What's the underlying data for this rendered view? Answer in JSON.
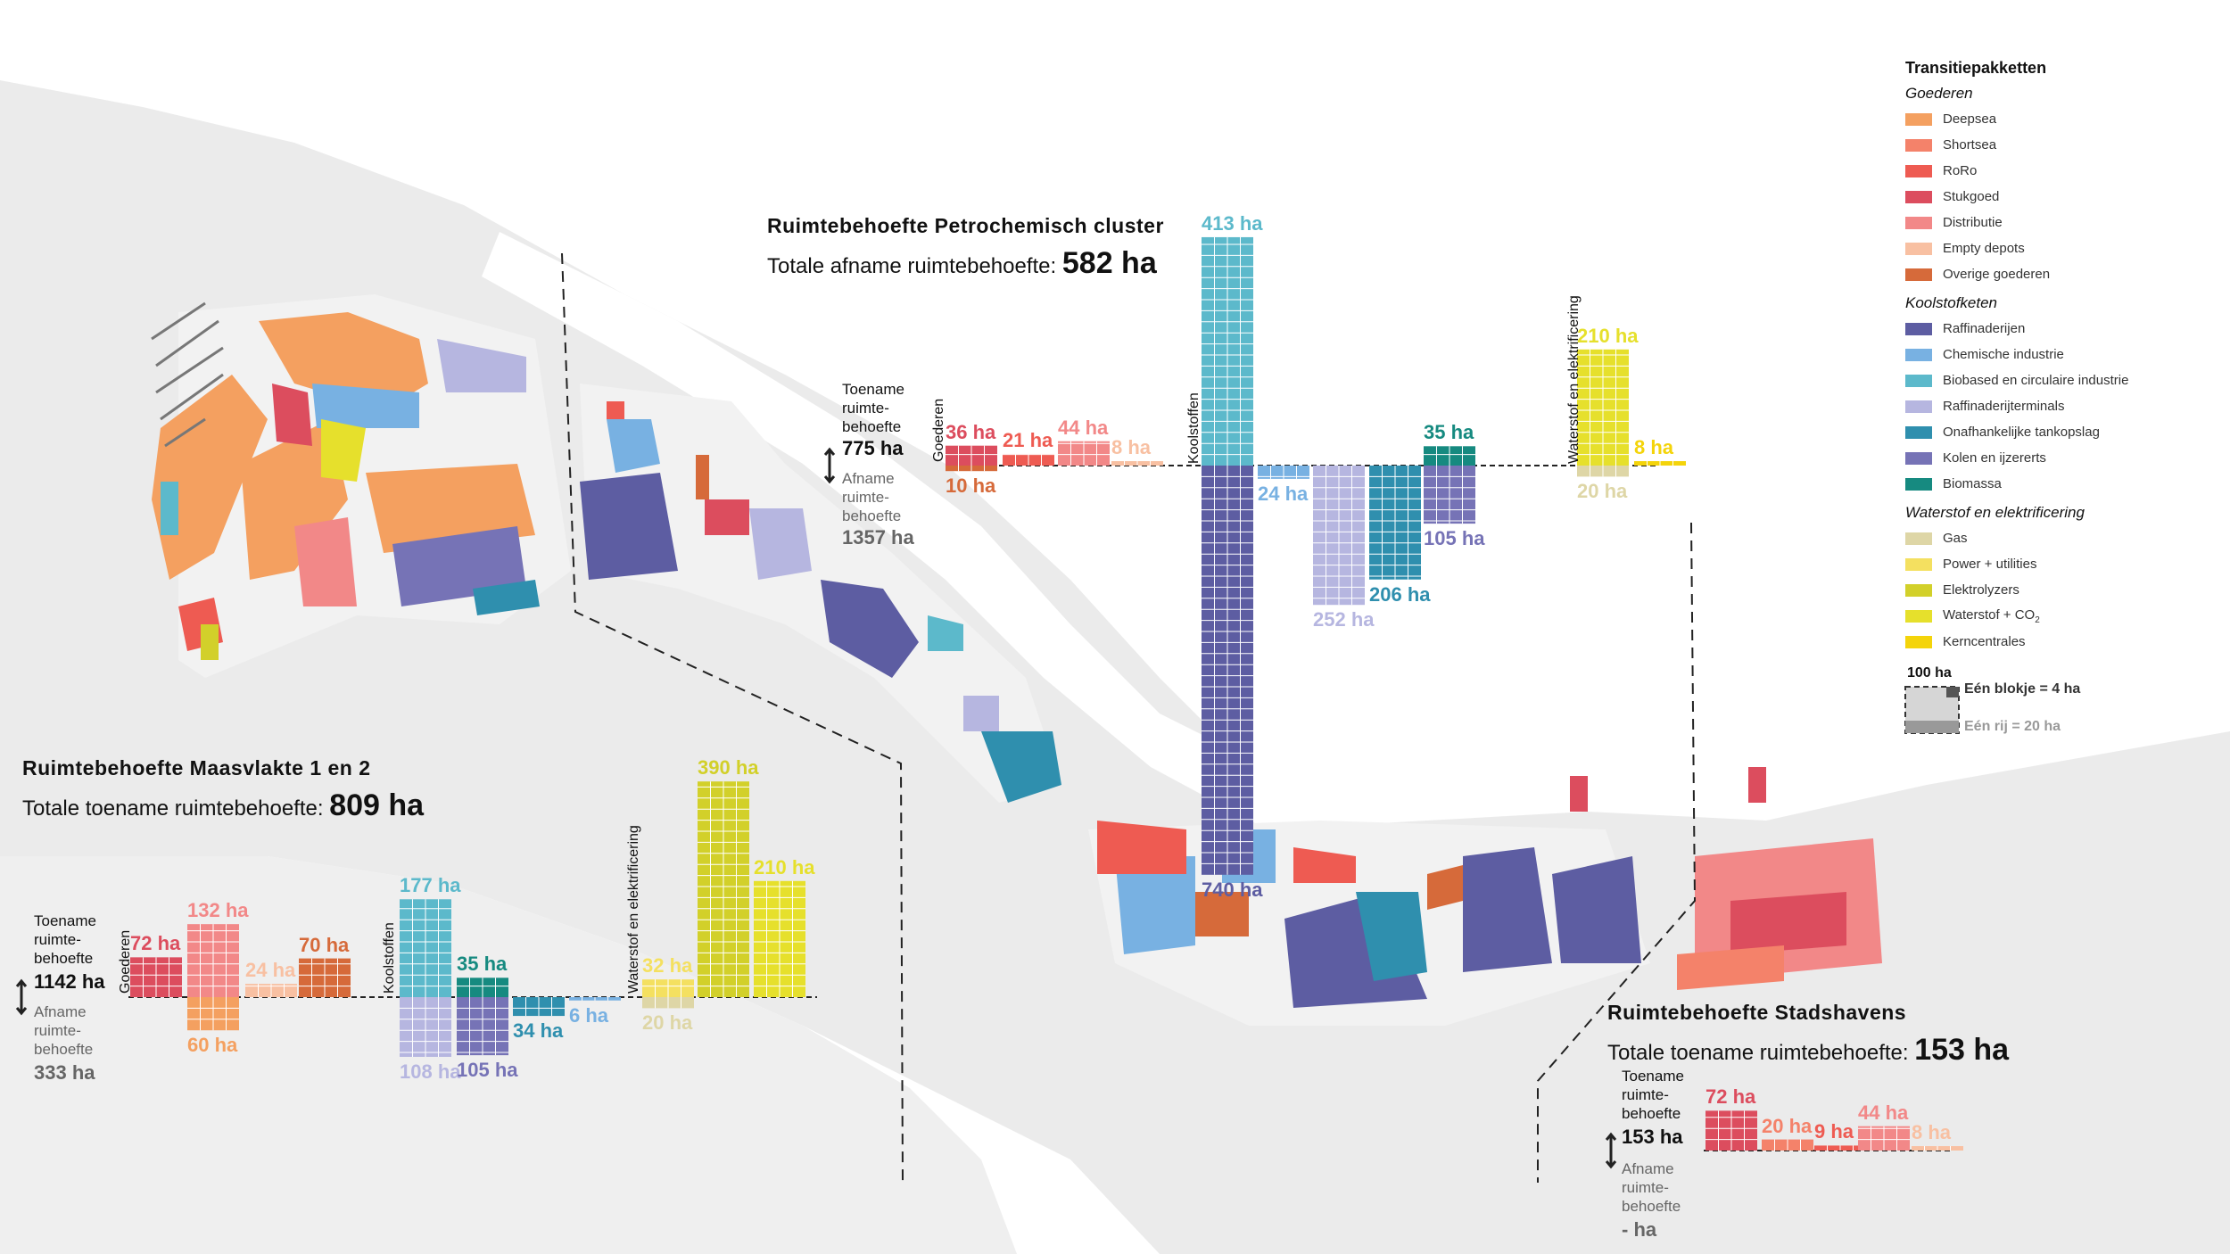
{
  "colors": {
    "Deepsea": "#f4a060",
    "Shortsea": "#f4826a",
    "RoRo": "#ee5b52",
    "Stukgoed": "#dc4d5e",
    "Distributie": "#f28888",
    "Empty depots": "#f8c0a2",
    "Overige goederen": "#d66a3a",
    "Raffinaderijen": "#5d5da2",
    "Chemische industrie": "#78b1e2",
    "Biobased": "#5cb9cb",
    "Raffinaderijterminals": "#b6b6e0",
    "Tankopslag": "#2f8fae",
    "Kolen": "#7673b6",
    "Biomassa": "#168a80",
    "Gas": "#ded6a6",
    "Power": "#f4e060",
    "Elektrolyzers": "#d2d02a",
    "Waterstof": "#e6e02c",
    "Kerncentrales": "#f4d40a"
  },
  "legend": {
    "title": "Transitiepakketten",
    "groups": [
      {
        "name": "Goederen",
        "items": [
          {
            "label": "Deepsea",
            "color": "#f4a060"
          },
          {
            "label": "Shortsea",
            "color": "#f4826a"
          },
          {
            "label": "RoRo",
            "color": "#ee5b52"
          },
          {
            "label": "Stukgoed",
            "color": "#dc4d5e"
          },
          {
            "label": "Distributie",
            "color": "#f28888"
          },
          {
            "label": "Empty depots",
            "color": "#f8c0a2"
          },
          {
            "label": "Overige goederen",
            "color": "#d66a3a"
          }
        ]
      },
      {
        "name": "Koolstofketen",
        "items": [
          {
            "label": "Raffinaderijen",
            "color": "#5d5da2"
          },
          {
            "label": "Chemische industrie",
            "color": "#78b1e2"
          },
          {
            "label": "Biobased en circulaire industrie",
            "color": "#5cb9cb"
          },
          {
            "label": "Raffinaderijterminals",
            "color": "#b6b6e0"
          },
          {
            "label": "Onafhankelijke tankopslag",
            "color": "#2f8fae"
          },
          {
            "label": "Kolen en ijzererts",
            "color": "#7673b6"
          },
          {
            "label": "Biomassa",
            "color": "#168a80"
          }
        ]
      },
      {
        "name": "Waterstof en elektrificering",
        "items": [
          {
            "label": "Gas",
            "color": "#ded6a6"
          },
          {
            "label": "Power + utilities",
            "color": "#f4e060"
          },
          {
            "label": "Elektrolyzers",
            "color": "#d2d02a"
          },
          {
            "label": "Waterstof + CO",
            "sub": "2",
            "color": "#e6e02c"
          },
          {
            "label": "Kerncentrales",
            "color": "#f4d40a"
          }
        ]
      }
    ],
    "scale": {
      "top": "100 ha",
      "block": "Eén blokje = 4 ha",
      "row": "Eén rij = 20 ha"
    }
  },
  "common": {
    "increase_label": "Toename\nruimte-\nbehoefte",
    "decrease_label": "Afname\nruimte-\nbehoefte",
    "group_goederen": "Goederen",
    "group_kool": "Koolstoffen",
    "group_water": "Waterstof en elektrificering"
  },
  "chart_data": [
    {
      "type": "bar",
      "title": "Ruimtebehoefte Petrochemisch cluster",
      "subtitle_prefix": "Totale afname ruimtebehoefte:",
      "subtitle_value": "582 ha",
      "increase_total": "775 ha",
      "decrease_total": "1357 ha",
      "unit": "ha",
      "bars": [
        {
          "category": "Stukgoed",
          "value": 36,
          "label": "36 ha"
        },
        {
          "category": "Overige goederen",
          "value": -10,
          "label": "10 ha"
        },
        {
          "category": "RoRo",
          "value": 21,
          "label": "21 ha"
        },
        {
          "category": "Distributie",
          "value": 44,
          "label": "44 ha"
        },
        {
          "category": "Empty depots",
          "value": 8,
          "label": "8 ha"
        },
        {
          "category": "Biobased en circulaire industrie",
          "value": 413,
          "label": "413 ha"
        },
        {
          "category": "Raffinaderijen",
          "value": -740,
          "label": "740 ha"
        },
        {
          "category": "Chemische industrie",
          "value": -24,
          "label": "24 ha"
        },
        {
          "category": "Raffinaderijterminals",
          "value": -252,
          "label": "252 ha"
        },
        {
          "category": "Onafhankelijke tankopslag",
          "value": -206,
          "label": "206 ha"
        },
        {
          "category": "Biomassa",
          "value": 35,
          "label": "35 ha"
        },
        {
          "category": "Kolen en ijzererts",
          "value": -105,
          "label": "105 ha"
        },
        {
          "category": "Waterstof + CO2",
          "value": 210,
          "label": "210 ha"
        },
        {
          "category": "Gas",
          "value": -20,
          "label": "20 ha"
        },
        {
          "category": "Kerncentrales",
          "value": 8,
          "label": "8 ha"
        }
      ]
    },
    {
      "type": "bar",
      "title": "Ruimtebehoefte Maasvlakte 1 en 2",
      "subtitle_prefix": "Totale toename ruimtebehoefte:",
      "subtitle_value": "809 ha",
      "increase_total": "1142 ha",
      "decrease_total": "333 ha",
      "unit": "ha",
      "bars": [
        {
          "category": "Stukgoed",
          "value": 72,
          "label": "72 ha"
        },
        {
          "category": "Distributie",
          "value": 132,
          "label": "132 ha"
        },
        {
          "category": "Deepsea",
          "value": -60,
          "label": "60 ha"
        },
        {
          "category": "Empty depots",
          "value": 24,
          "label": "24 ha"
        },
        {
          "category": "Overige goederen",
          "value": 70,
          "label": "70 ha"
        },
        {
          "category": "Biobased en circulaire industrie",
          "value": 177,
          "label": "177 ha"
        },
        {
          "category": "Raffinaderijterminals",
          "value": -108,
          "label": "108 ha"
        },
        {
          "category": "Biomassa",
          "value": 35,
          "label": "35 ha"
        },
        {
          "category": "Kolen en ijzererts",
          "value": -105,
          "label": "105 ha"
        },
        {
          "category": "Onafhankelijke tankopslag",
          "value": -34,
          "label": "34 ha"
        },
        {
          "category": "Chemische industrie",
          "value": -6,
          "label": "6 ha"
        },
        {
          "category": "Power + utilities",
          "value": 32,
          "label": "32 ha"
        },
        {
          "category": "Gas",
          "value": -20,
          "label": "20 ha"
        },
        {
          "category": "Elektrolyzers",
          "value": 390,
          "label": "390 ha"
        },
        {
          "category": "Waterstof + CO2",
          "value": 210,
          "label": "210 ha"
        }
      ]
    },
    {
      "type": "bar",
      "title": "Ruimtebehoefte Stadshavens",
      "subtitle_prefix": "Totale toename ruimtebehoefte:",
      "subtitle_value": "153 ha",
      "increase_total": "153 ha",
      "decrease_total": "- ha",
      "unit": "ha",
      "bars": [
        {
          "category": "Stukgoed",
          "value": 72,
          "label": "72 ha"
        },
        {
          "category": "Shortsea",
          "value": 20,
          "label": "20 ha"
        },
        {
          "category": "RoRo",
          "value": 9,
          "label": "9 ha"
        },
        {
          "category": "Distributie",
          "value": 44,
          "label": "44 ha"
        },
        {
          "category": "Empty depots",
          "value": 8,
          "label": "8 ha"
        }
      ]
    }
  ]
}
